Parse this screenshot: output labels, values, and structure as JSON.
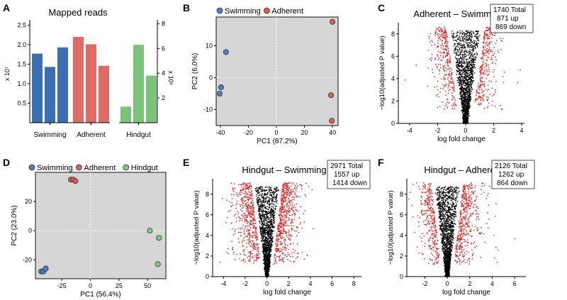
{
  "figure": {
    "panel_letters": [
      "A",
      "B",
      "C",
      "D",
      "E",
      "F"
    ]
  },
  "colors": {
    "blue": "#3a6fb4",
    "red": "#e06a66",
    "green": "#7bc37b",
    "pca_bg": "#d6d6d6",
    "pca_blue": "#4a7fc4",
    "pca_red": "#e35b55",
    "pca_green": "#7acb7a",
    "volcano_sig": "#ee1c1c",
    "volcano_ns": "#000000"
  },
  "chart_data": [
    {
      "panel": "A",
      "type": "bar",
      "title": "Mapped reads",
      "groups": [
        {
          "name": "Swimming",
          "axis": "left",
          "color_key": "blue",
          "values": [
            1.77,
            1.43,
            1.93
          ]
        },
        {
          "name": "Adherent",
          "axis": "left",
          "color_key": "red",
          "values": [
            2.2,
            2.01,
            1.46
          ]
        },
        {
          "name": "Hindgut",
          "axis": "right",
          "color_key": "green",
          "values": [
            1.3,
            6.3,
            3.8
          ]
        }
      ],
      "left_axis": {
        "multiplier": "x 10⁷",
        "ylim": [
          0,
          2.6
        ],
        "ticks": [
          "0.5",
          "1.0",
          "1.5",
          "2.0",
          "2.5"
        ]
      },
      "right_axis": {
        "multiplier": "x 10⁶",
        "ylim": [
          0,
          8.2
        ],
        "ticks": [
          "2",
          "4",
          "6",
          "8"
        ]
      }
    },
    {
      "panel": "B",
      "type": "scatter",
      "legend": [
        "Swimming",
        "Adherent"
      ],
      "xlabel": "PC1 (87.2%)",
      "ylabel": "PC2 (6.0%)",
      "xlim": [
        -43,
        44
      ],
      "ylim": [
        -15,
        19
      ],
      "xticks": [
        "-40",
        "-20",
        "0",
        "20",
        "40"
      ],
      "yticks": [
        "-10",
        "0",
        "10"
      ],
      "series": [
        {
          "name": "Swimming",
          "color_key": "pca_blue",
          "points": [
            [
              -36,
              8
            ],
            [
              -39.5,
              -3
            ],
            [
              -40.5,
              -5
            ]
          ]
        },
        {
          "name": "Adherent",
          "color_key": "pca_red",
          "points": [
            [
              40,
              17.5
            ],
            [
              39,
              -5.5
            ],
            [
              39.5,
              -13.5
            ]
          ]
        }
      ]
    },
    {
      "panel": "C",
      "type": "scatter",
      "subtype": "volcano",
      "title": "Adherent – Swimming",
      "xlabel": "log fold change",
      "ylabel": "−log10(adjusted P value)",
      "xlim": [
        -4.8,
        4.2
      ],
      "ylim": [
        0,
        9
      ],
      "xticks": [
        "-4",
        "-2",
        "0",
        "2",
        "4"
      ],
      "yticks": [
        "0",
        "2",
        "4",
        "6",
        "8"
      ],
      "stats": {
        "total": "1740 Total",
        "up": "871 up",
        "down": "869 down"
      },
      "sig_up": 871,
      "sig_down": 869,
      "xrange_sig": [
        -2.7,
        2.6
      ]
    },
    {
      "panel": "D",
      "type": "scatter",
      "legend": [
        "Swimming",
        "Adherent",
        "Hindgut"
      ],
      "xlabel": "PC1 (56.4%)",
      "ylabel": "PC2 (23.0%)",
      "xlim": [
        -48,
        66
      ],
      "ylim": [
        -33,
        40
      ],
      "xticks": [
        "-25",
        "0",
        "25",
        "50"
      ],
      "yticks": [
        "-20",
        "0",
        "20"
      ],
      "series": [
        {
          "name": "Swimming",
          "color_key": "pca_blue",
          "points": [
            [
              -43,
              -28
            ],
            [
              -41,
              -28
            ],
            [
              -39,
              -26
            ]
          ]
        },
        {
          "name": "Adherent",
          "color_key": "pca_red",
          "points": [
            [
              -17,
              35
            ],
            [
              -15,
              35
            ],
            [
              -13,
              34
            ]
          ]
        },
        {
          "name": "Hindgut",
          "color_key": "pca_green",
          "points": [
            [
              52,
              0
            ],
            [
              60,
              -5
            ],
            [
              59,
              -23
            ]
          ]
        }
      ]
    },
    {
      "panel": "E",
      "type": "scatter",
      "subtype": "volcano",
      "title": "Hindgut – Swimming",
      "xlabel": "log fold change",
      "ylabel": "−log10(adjusted P value)",
      "xlim": [
        -5,
        8.7
      ],
      "ylim": [
        0,
        9.5
      ],
      "xticks": [
        "-4",
        "-2",
        "0",
        "2",
        "4",
        "6",
        "8"
      ],
      "yticks": [
        "0",
        "2",
        "4",
        "6",
        "8"
      ],
      "stats": {
        "total": "2971 Total",
        "up": "1557 up",
        "down": "1414 down"
      },
      "sig_up": 1557,
      "sig_down": 1414,
      "xrange_sig": [
        -4,
        4.2
      ]
    },
    {
      "panel": "F",
      "type": "scatter",
      "subtype": "volcano",
      "title": "Hindgut – Adherent",
      "xlabel": "log fold change",
      "ylabel": "−log10(adjusted P value)",
      "xlim": [
        -3.6,
        7
      ],
      "ylim": [
        0,
        9.5
      ],
      "xticks": [
        "-2",
        "0",
        "2",
        "4",
        "6"
      ],
      "yticks": [
        "0",
        "2",
        "4",
        "6",
        "8"
      ],
      "stats": {
        "total": "2126 Total",
        "up": "1262 up",
        "down": "864 down"
      },
      "sig_up": 1262,
      "sig_down": 864,
      "xrange_sig": [
        -3,
        4.2
      ]
    }
  ]
}
